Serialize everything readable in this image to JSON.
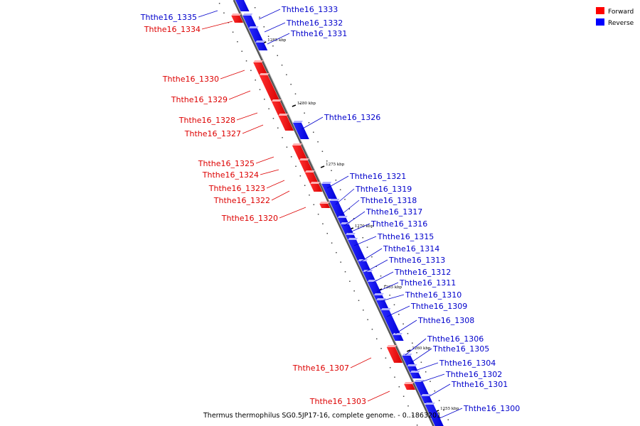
{
  "legend": [
    {
      "label": "Forward",
      "color": "#ff0000"
    },
    {
      "label": "Reverse",
      "color": "#0000ff"
    }
  ],
  "caption": "Thermus thermophilus SG0.5JP17-16, complete genome. - 0..1863201",
  "ticks": [
    "1285 kbp",
    "1280 kbp",
    "1275 kbp",
    "1270 kbp",
    "1265 kbp",
    "1260 kbp",
    "1255 kbp"
  ],
  "genes_forward": [
    "Ththe16_1334",
    "Ththe16_1330",
    "Ththe16_1329",
    "Ththe16_1328",
    "Ththe16_1327",
    "Ththe16_1325",
    "Ththe16_1324",
    "Ththe16_1323",
    "Ththe16_1322",
    "Ththe16_1320",
    "Ththe16_1307",
    "Ththe16_1303"
  ],
  "genes_reverse": [
    "Ththe16_1335",
    "Ththe16_1333",
    "Ththe16_1332",
    "Ththe16_1331",
    "Ththe16_1326",
    "Ththe16_1321",
    "Ththe16_1319",
    "Ththe16_1318",
    "Ththe16_1317",
    "Ththe16_1316",
    "Ththe16_1315",
    "Ththe16_1314",
    "Ththe16_1313",
    "Ththe16_1312",
    "Ththe16_1311",
    "Ththe16_1310",
    "Ththe16_1309",
    "Ththe16_1308",
    "Ththe16_1306",
    "Ththe16_1305",
    "Ththe16_1304",
    "Ththe16_1302",
    "Ththe16_1301",
    "Ththe16_1300"
  ]
}
